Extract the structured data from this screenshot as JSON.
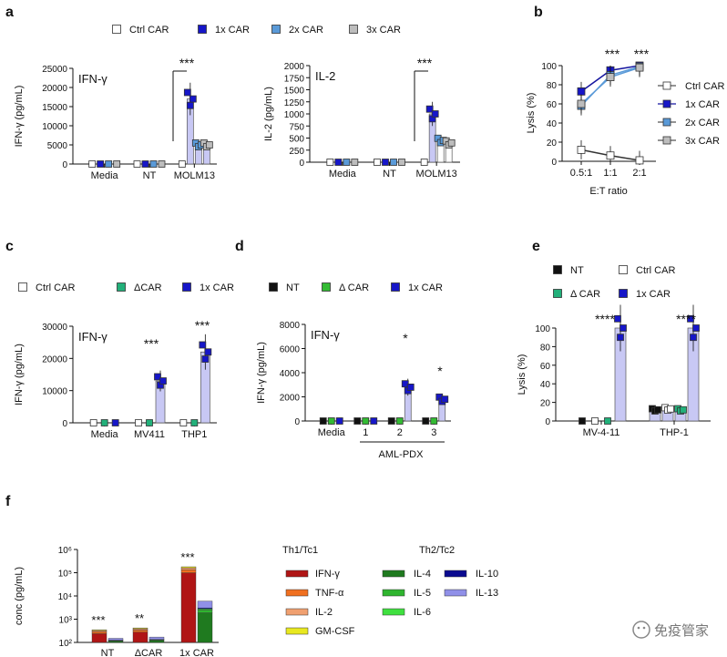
{
  "colors": {
    "ctrl": "#ffffff",
    "car1x": "#1616c8",
    "car2x": "#5a9ad8",
    "car3x": "#bdbdbd",
    "dcar": "#22b07a",
    "nt": "#111111",
    "dcar_d": "#33bb33",
    "ifng": "#b01515",
    "tnfa": "#f07020",
    "il2": "#f0a070",
    "gmcsf": "#e8e820",
    "il4": "#1f7a1f",
    "il5": "#2fb52f",
    "il6": "#3fe03f",
    "il10": "#0a0a90",
    "il13": "#9090e8"
  },
  "panel_labels": [
    "a",
    "b",
    "c",
    "d",
    "e",
    "f"
  ],
  "legends": {
    "a": [
      "Ctrl CAR",
      "1x CAR",
      "2x CAR",
      "3x CAR"
    ],
    "b": [
      "Ctrl CAR",
      "1x CAR",
      "2x CAR",
      "3x CAR"
    ],
    "c": [
      "Ctrl CAR",
      "ΔCAR",
      "1x CAR"
    ],
    "d": [
      "NT",
      "Δ CAR",
      "1x CAR"
    ],
    "e": [
      "NT",
      "Ctrl CAR",
      "Δ CAR",
      "1x CAR"
    ],
    "f_th1_title": "Th1/Tc1",
    "f_th2_title": "Th2/Tc2",
    "f_th1": [
      "IFN-γ",
      "TNF-α",
      "IL-2",
      "GM-CSF"
    ],
    "f_th2a": [
      "IL-4",
      "IL-5",
      "IL-6"
    ],
    "f_th2b": [
      "IL-10",
      "IL-13"
    ]
  },
  "watermark": "免疫管家",
  "chart_data": [
    {
      "id": "a1",
      "type": "bar",
      "title": "IFN-γ",
      "ylabel": "IFN-γ (pg/mL)",
      "ylim": [
        0,
        25000
      ],
      "yticks": [
        "0",
        "5000",
        "10000",
        "15000",
        "20000",
        "25000"
      ],
      "categories": [
        "Media",
        "NT",
        "MOLM13"
      ],
      "series": [
        {
          "name": "Ctrl CAR",
          "values": [
            0,
            0,
            0
          ]
        },
        {
          "name": "1x CAR",
          "values": [
            0,
            0,
            17000
          ]
        },
        {
          "name": "2x CAR",
          "values": [
            0,
            0,
            5000
          ]
        },
        {
          "name": "3x CAR",
          "values": [
            0,
            0,
            5000
          ]
        }
      ],
      "annotations": [
        "***"
      ]
    },
    {
      "id": "a2",
      "type": "bar",
      "title": "IL-2",
      "ylabel": "IL-2 (pg/mL)",
      "ylim": [
        0,
        2000
      ],
      "yticks": [
        "0",
        "250",
        "500",
        "750",
        "1000",
        "1250",
        "1500",
        "1750",
        "2000"
      ],
      "categories": [
        "Media",
        "NT",
        "MOLM13"
      ],
      "series": [
        {
          "name": "Ctrl CAR",
          "values": [
            0,
            0,
            0
          ]
        },
        {
          "name": "1x CAR",
          "values": [
            0,
            0,
            1000
          ]
        },
        {
          "name": "2x CAR",
          "values": [
            0,
            0,
            450
          ]
        },
        {
          "name": "3x CAR",
          "values": [
            0,
            0,
            400
          ]
        }
      ],
      "annotations": [
        "***"
      ]
    },
    {
      "id": "b",
      "type": "line",
      "xlabel": "E:T ratio",
      "ylabel": "Lysis (%)",
      "ylim": [
        0,
        100
      ],
      "categories": [
        "0.5:1",
        "1:1",
        "2:1"
      ],
      "yticks": [
        "0",
        "20",
        "40",
        "60",
        "80",
        "100"
      ],
      "series": [
        {
          "name": "Ctrl CAR",
          "values": [
            12,
            6,
            1
          ]
        },
        {
          "name": "1x CAR",
          "values": [
            73,
            95,
            100
          ]
        },
        {
          "name": "2x CAR",
          "values": [
            58,
            90,
            99
          ]
        },
        {
          "name": "3x CAR",
          "values": [
            60,
            88,
            98
          ]
        }
      ],
      "annotations": [
        "***",
        "***"
      ]
    },
    {
      "id": "c",
      "type": "bar",
      "title": "IFN-γ",
      "ylabel": "IFN-γ (pg/mL)",
      "ylim": [
        0,
        30000
      ],
      "yticks": [
        "0",
        "10000",
        "20000",
        "30000"
      ],
      "categories": [
        "Media",
        "MV411",
        "THP1"
      ],
      "series": [
        {
          "name": "Ctrl CAR",
          "values": [
            0,
            0,
            0
          ]
        },
        {
          "name": "ΔCAR",
          "values": [
            0,
            0,
            0
          ]
        },
        {
          "name": "1x CAR",
          "values": [
            0,
            13000,
            22000
          ]
        }
      ],
      "annotations": [
        "***",
        "***"
      ]
    },
    {
      "id": "d",
      "type": "bar",
      "title": "IFN-γ",
      "ylabel": "IFN-γ (pg/mL)",
      "ylim": [
        0,
        8000
      ],
      "yticks": [
        "0",
        "2000",
        "4000",
        "6000",
        "8000"
      ],
      "categories": [
        "Media",
        "1",
        "2",
        "3"
      ],
      "group_label": "AML-PDX",
      "series": [
        {
          "name": "NT",
          "values": [
            0,
            0,
            0,
            0
          ]
        },
        {
          "name": "Δ CAR",
          "values": [
            0,
            0,
            0,
            0
          ]
        },
        {
          "name": "1x CAR",
          "values": [
            0,
            0,
            2800,
            1800
          ]
        }
      ],
      "annotations": [
        "*",
        "*"
      ]
    },
    {
      "id": "e",
      "type": "bar",
      "ylabel": "Lysis (%)",
      "ylim": [
        0,
        100
      ],
      "yticks": [
        "0",
        "20",
        "40",
        "60",
        "80",
        "100"
      ],
      "categories": [
        "MV-4-11",
        "THP-1"
      ],
      "series": [
        {
          "name": "NT",
          "values": [
            0,
            12
          ]
        },
        {
          "name": "Ctrl CAR",
          "values": [
            0,
            13
          ]
        },
        {
          "name": "Δ CAR",
          "values": [
            0,
            12
          ]
        },
        {
          "name": "1x CAR",
          "values": [
            100,
            100
          ]
        }
      ],
      "annotations": [
        "****",
        "****"
      ]
    },
    {
      "id": "f",
      "type": "bar",
      "stacked": true,
      "ylabel": "conc (pg/mL)",
      "yscale": "log",
      "ylim": [
        100,
        1000000
      ],
      "categories": [
        "NT",
        "ΔCAR",
        "1x CAR"
      ],
      "series": [
        {
          "name": "Th1/Tc1",
          "values": [
            350,
            420,
            180000
          ]
        },
        {
          "name": "Th2/Tc2",
          "values": [
            150,
            170,
            6000
          ]
        }
      ],
      "annotations": [
        "***",
        "**",
        "***"
      ]
    }
  ]
}
